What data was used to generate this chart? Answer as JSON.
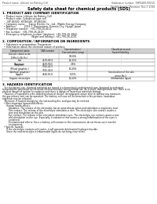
{
  "title": "Safety data sheet for chemical products (SDS)",
  "header_left": "Product name: Lithium Ion Battery Cell",
  "header_right": "Substance number: 99P0489-00010\nEstablishment / Revision: Dec.7.2016",
  "section1_title": "1. PRODUCT AND COMPANY IDENTIFICATION",
  "section1_lines": [
    "  • Product name: Lithium Ion Battery Cell",
    "  • Product code: Cylindrical-type cell",
    "      (XP-86580, XP-86580, XP-86504)",
    "  • Company name:    Sanyo Electric Co., Ltd., Mobile Energy Company",
    "  • Address:          2023-1  Kaminaizen, Sumoto-City, Hyogo, Japan",
    "  • Telephone number:  +81-799-24-4111",
    "  • Fax number:  +81-799-26-4129",
    "  • Emergency telephone number (daytime): +81-799-26-3842",
    "                                     (Night and holiday): +81-799-26-4101"
  ],
  "section2_title": "2. COMPOSITION / INFORMATION ON INGREDIENTS",
  "section2_lines": [
    "  • Substance or preparation: Preparation",
    "  • Information about the chemical nature of product:"
  ],
  "table_headers": [
    "Component name",
    "CAS number",
    "Concentration /\nConcentration range",
    "Classification and\nhazard labeling"
  ],
  "table_rows": [
    [
      "Lithium cobalt oxide\n(LiMn-Co-Ni-Ox)",
      "-",
      "30-50%",
      "-"
    ],
    [
      "Iron",
      "7439-89-6",
      "15-25%",
      "-"
    ],
    [
      "Aluminum",
      "7429-90-5",
      "2-8%",
      "-"
    ],
    [
      "Graphite\n(Mixed graphite-)\n(Artificial graphite)",
      "7782-42-5\n7782-40-0",
      "10-20%",
      "-"
    ],
    [
      "Copper",
      "7440-50-8",
      "5-15%",
      "Sensitization of the skin\ngroup No.2"
    ],
    [
      "Organic electrolyte",
      "-",
      "10-20%",
      "Inflammable liquid"
    ]
  ],
  "section3_title": "3. HAZARDS IDENTIFICATION",
  "section3_body": [
    "   For the battery can, chemical materials are stored in a hermetically sealed metal case, designed to withstand",
    "temperatures generated by electrode-electrochemistry during normal use. As a result, during normal use, there is no",
    "physical danger of ignition or explosion and there is danger of hazardous materials leakage.",
    "   However, if exposed to a fire added mechanical shocks, decomposed, arisen electric without any measures,",
    "the gas release vent can be operated. The battery cell case will be breached or fire-portions, hazardous",
    "materials may be released.",
    "   Moreover, if heated strongly by the surrounding fire, acid gas may be emitted."
  ],
  "section3_hazard": [
    "  • Most important hazard and effects:",
    "      Human health effects:",
    "         Inhalation: The release of the electrolyte has an anaesthesia action and stimulates a respiratory tract.",
    "         Skin contact: The release of the electrolyte stimulates a skin. The electrolyte skin contact causes a",
    "         sore and stimulation on the skin.",
    "         Eye contact: The release of the electrolyte stimulates eyes. The electrolyte eye contact causes a sore",
    "         and stimulation on the eye. Especially, a substance that causes a strong inflammation of the eyes is",
    "         contained.",
    "         Environmental effects: Since a battery cell remains in the environment, do not throw out it into the",
    "         environment."
  ],
  "section3_specific": [
    "  • Specific hazards:",
    "      If the electrolyte contacts with water, it will generate detrimental hydrogen fluoride.",
    "      Since the said electrolyte is inflammable liquid, do not bring close to fire."
  ],
  "bg_color": "#ffffff",
  "text_color": "#111111",
  "title_color": "#000000",
  "section_title_color": "#000000",
  "table_header_bg": "#d0d0d0",
  "line_color": "#999999"
}
